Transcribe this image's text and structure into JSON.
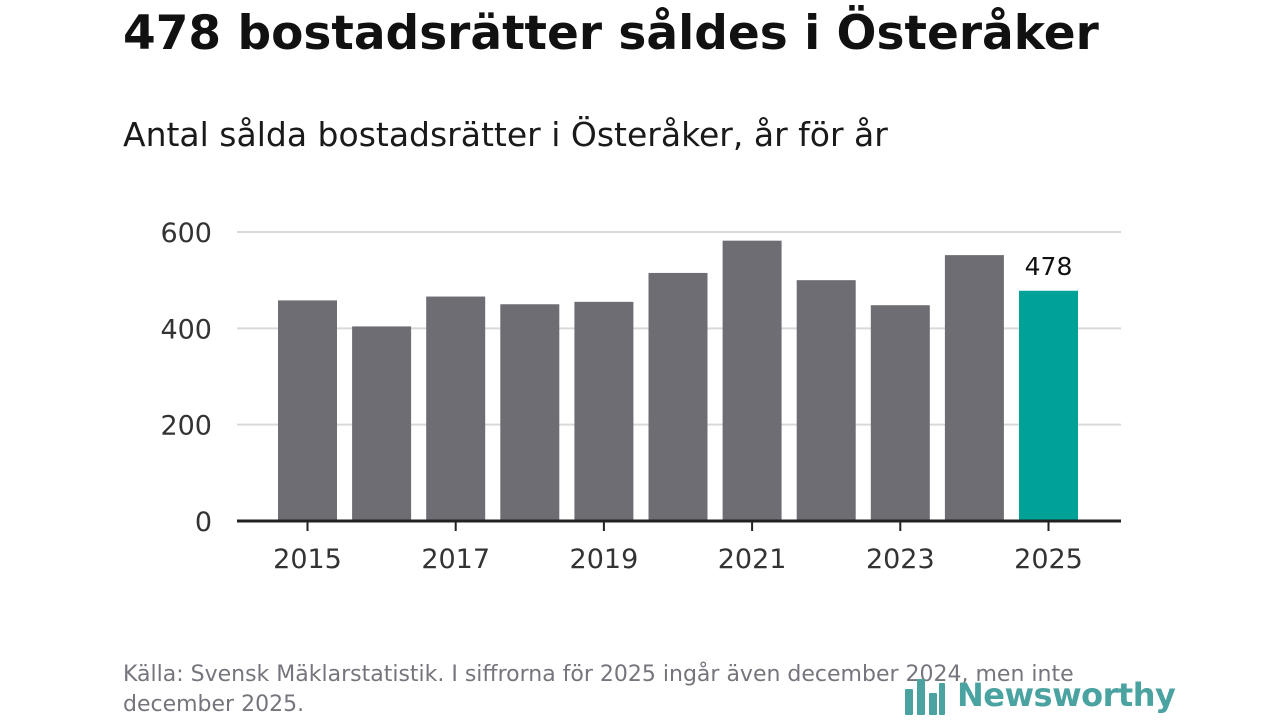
{
  "title": "478 bostadsrätter såldes i Österåker",
  "subtitle": "Antal sålda bostadsrätter i Österåker, år för år",
  "source": "Källa: Svensk Mäklarstatistik. I siffrorna för 2025 ingår även december 2024, men inte december 2025.",
  "brand": {
    "name": "Newsworthy",
    "icon": "bar-chart-logo-icon",
    "color": "#4aa3a0"
  },
  "colors": {
    "bar": "#6e6d73",
    "highlight": "#00a298",
    "grid": "#d9d9d9",
    "axis": "#222222",
    "tick_text": "#333333"
  },
  "chart_data": {
    "type": "bar",
    "title": "Antal sålda bostadsrätter i Österåker, år för år",
    "xlabel": "",
    "ylabel": "",
    "categories": [
      "2015",
      "2016",
      "2017",
      "2018",
      "2019",
      "2020",
      "2021",
      "2022",
      "2023",
      "2024",
      "2025"
    ],
    "values": [
      458,
      404,
      466,
      450,
      455,
      515,
      582,
      500,
      448,
      552,
      478
    ],
    "highlight_index": 10,
    "data_labels": [
      {
        "index": 10,
        "text": "478"
      }
    ],
    "ylim": [
      0,
      600
    ],
    "yticks": [
      0,
      200,
      400,
      600
    ],
    "xtick_labels": [
      "2015",
      "2017",
      "2019",
      "2021",
      "2023",
      "2025"
    ],
    "grid": true
  }
}
